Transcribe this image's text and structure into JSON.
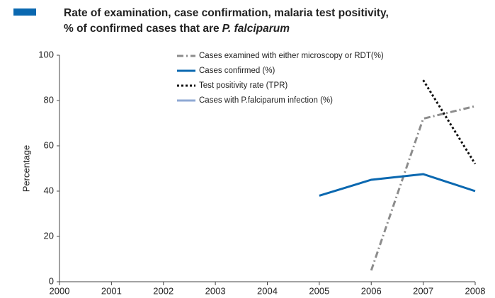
{
  "chart_data": {
    "type": "line",
    "title": [
      "Rate of examination, case confirmation, malaria test positivity,",
      "% of confirmed cases that are",
      "P. falciparum"
    ],
    "y_label": "Percentage",
    "x": [
      2000,
      2001,
      2002,
      2003,
      2004,
      2005,
      2006,
      2007,
      2008
    ],
    "xlim": [
      2000,
      2008
    ],
    "xticks": [
      2000,
      2001,
      2002,
      2003,
      2004,
      2005,
      2006,
      2007,
      2008
    ],
    "ylim": [
      0,
      100
    ],
    "yticks": [
      0,
      20,
      40,
      60,
      80,
      100
    ],
    "grid": false,
    "legend": "top",
    "series": [
      {
        "name": "Cases examined with either microscopy or RDT(%)",
        "color": "#8c8c8c",
        "dash": "dashdot",
        "values": [
          null,
          null,
          null,
          null,
          null,
          null,
          5,
          72,
          77.5
        ]
      },
      {
        "name": "Cases confirmed (%)",
        "color": "#0a68b0",
        "dash": "solid",
        "values": [
          null,
          null,
          null,
          null,
          null,
          38,
          45,
          47.5,
          40
        ]
      },
      {
        "name": "Test positivity rate (TPR)",
        "color": "#111111",
        "dash": "dotted",
        "values": [
          null,
          null,
          null,
          null,
          null,
          null,
          null,
          89,
          52
        ]
      },
      {
        "name": "Cases with P.falciparum infection (%)",
        "color": "#8fa9d4",
        "dash": "solid",
        "values": [
          null,
          null,
          null,
          null,
          null,
          null,
          null,
          null,
          null
        ]
      }
    ]
  }
}
